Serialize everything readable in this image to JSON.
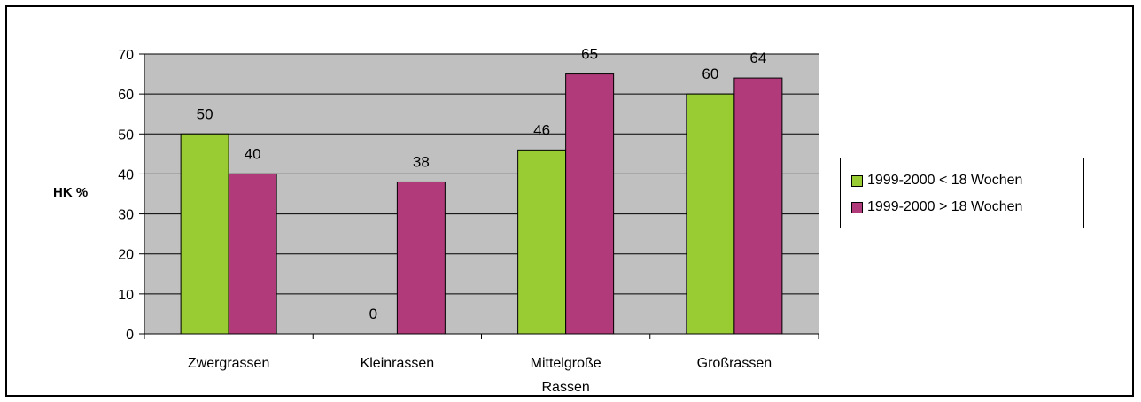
{
  "colors": {
    "plot_bg": "#c0c0c0",
    "series_1": "#99cc33",
    "series_2": "#b03a7a",
    "grid": "#000000"
  },
  "chart_data": {
    "type": "bar",
    "title": "",
    "xlabel": "",
    "ylabel": "HK %",
    "ylim": [
      0,
      70
    ],
    "yticks": [
      0,
      10,
      20,
      30,
      40,
      50,
      60,
      70
    ],
    "grid": true,
    "legend_position": "right",
    "categories": [
      [
        "Zwergrassen"
      ],
      [
        "Kleinrassen"
      ],
      [
        "Mittelgroße",
        "Rassen"
      ],
      [
        "Großrassen"
      ]
    ],
    "series": [
      {
        "name": "1999-2000 < 18 Wochen",
        "values": [
          50,
          0,
          46,
          60
        ]
      },
      {
        "name": "1999-2000 > 18 Wochen",
        "values": [
          40,
          38,
          65,
          64
        ]
      }
    ]
  }
}
